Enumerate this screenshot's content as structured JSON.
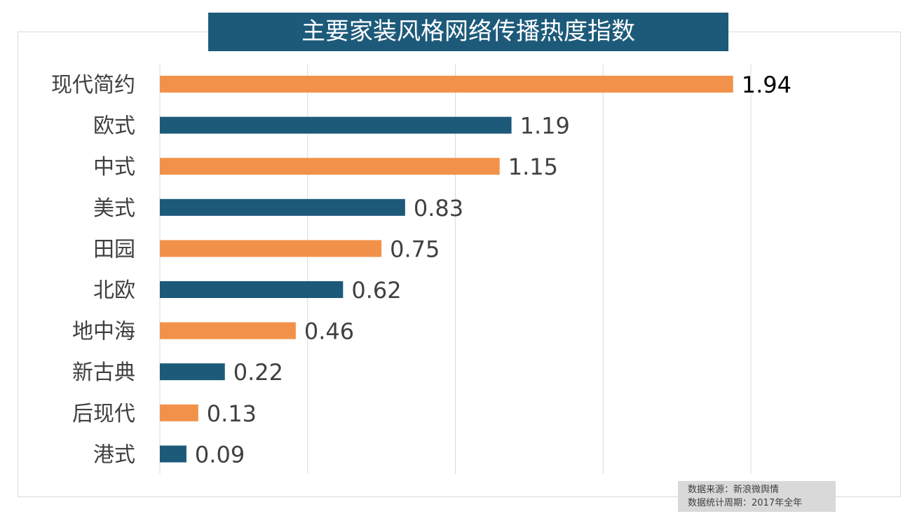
{
  "chart_data": {
    "type": "bar",
    "orientation": "horizontal",
    "title": "主要家装风格网络传播热度指数",
    "categories": [
      "现代简约",
      "欧式",
      "中式",
      "美式",
      "田园",
      "北欧",
      "地中海",
      "新古典",
      "后现代",
      "港式"
    ],
    "values": [
      1.94,
      1.19,
      1.15,
      0.83,
      0.75,
      0.62,
      0.46,
      0.22,
      0.13,
      0.09
    ],
    "bar_colors": [
      "#f2924a",
      "#1d5a7a",
      "#f2924a",
      "#1d5a7a",
      "#f2924a",
      "#1d5a7a",
      "#f2924a",
      "#1d5a7a",
      "#f2924a",
      "#1d5a7a"
    ],
    "xlim": [
      0,
      2
    ],
    "xgrid": [
      0,
      0.5,
      1,
      1.5,
      2
    ],
    "grid": true,
    "data_labels": true,
    "xlabel": "",
    "ylabel": ""
  },
  "source": {
    "line1": "数据来源：新浪微舆情",
    "line2": "数据统计周期：2017年全年"
  }
}
